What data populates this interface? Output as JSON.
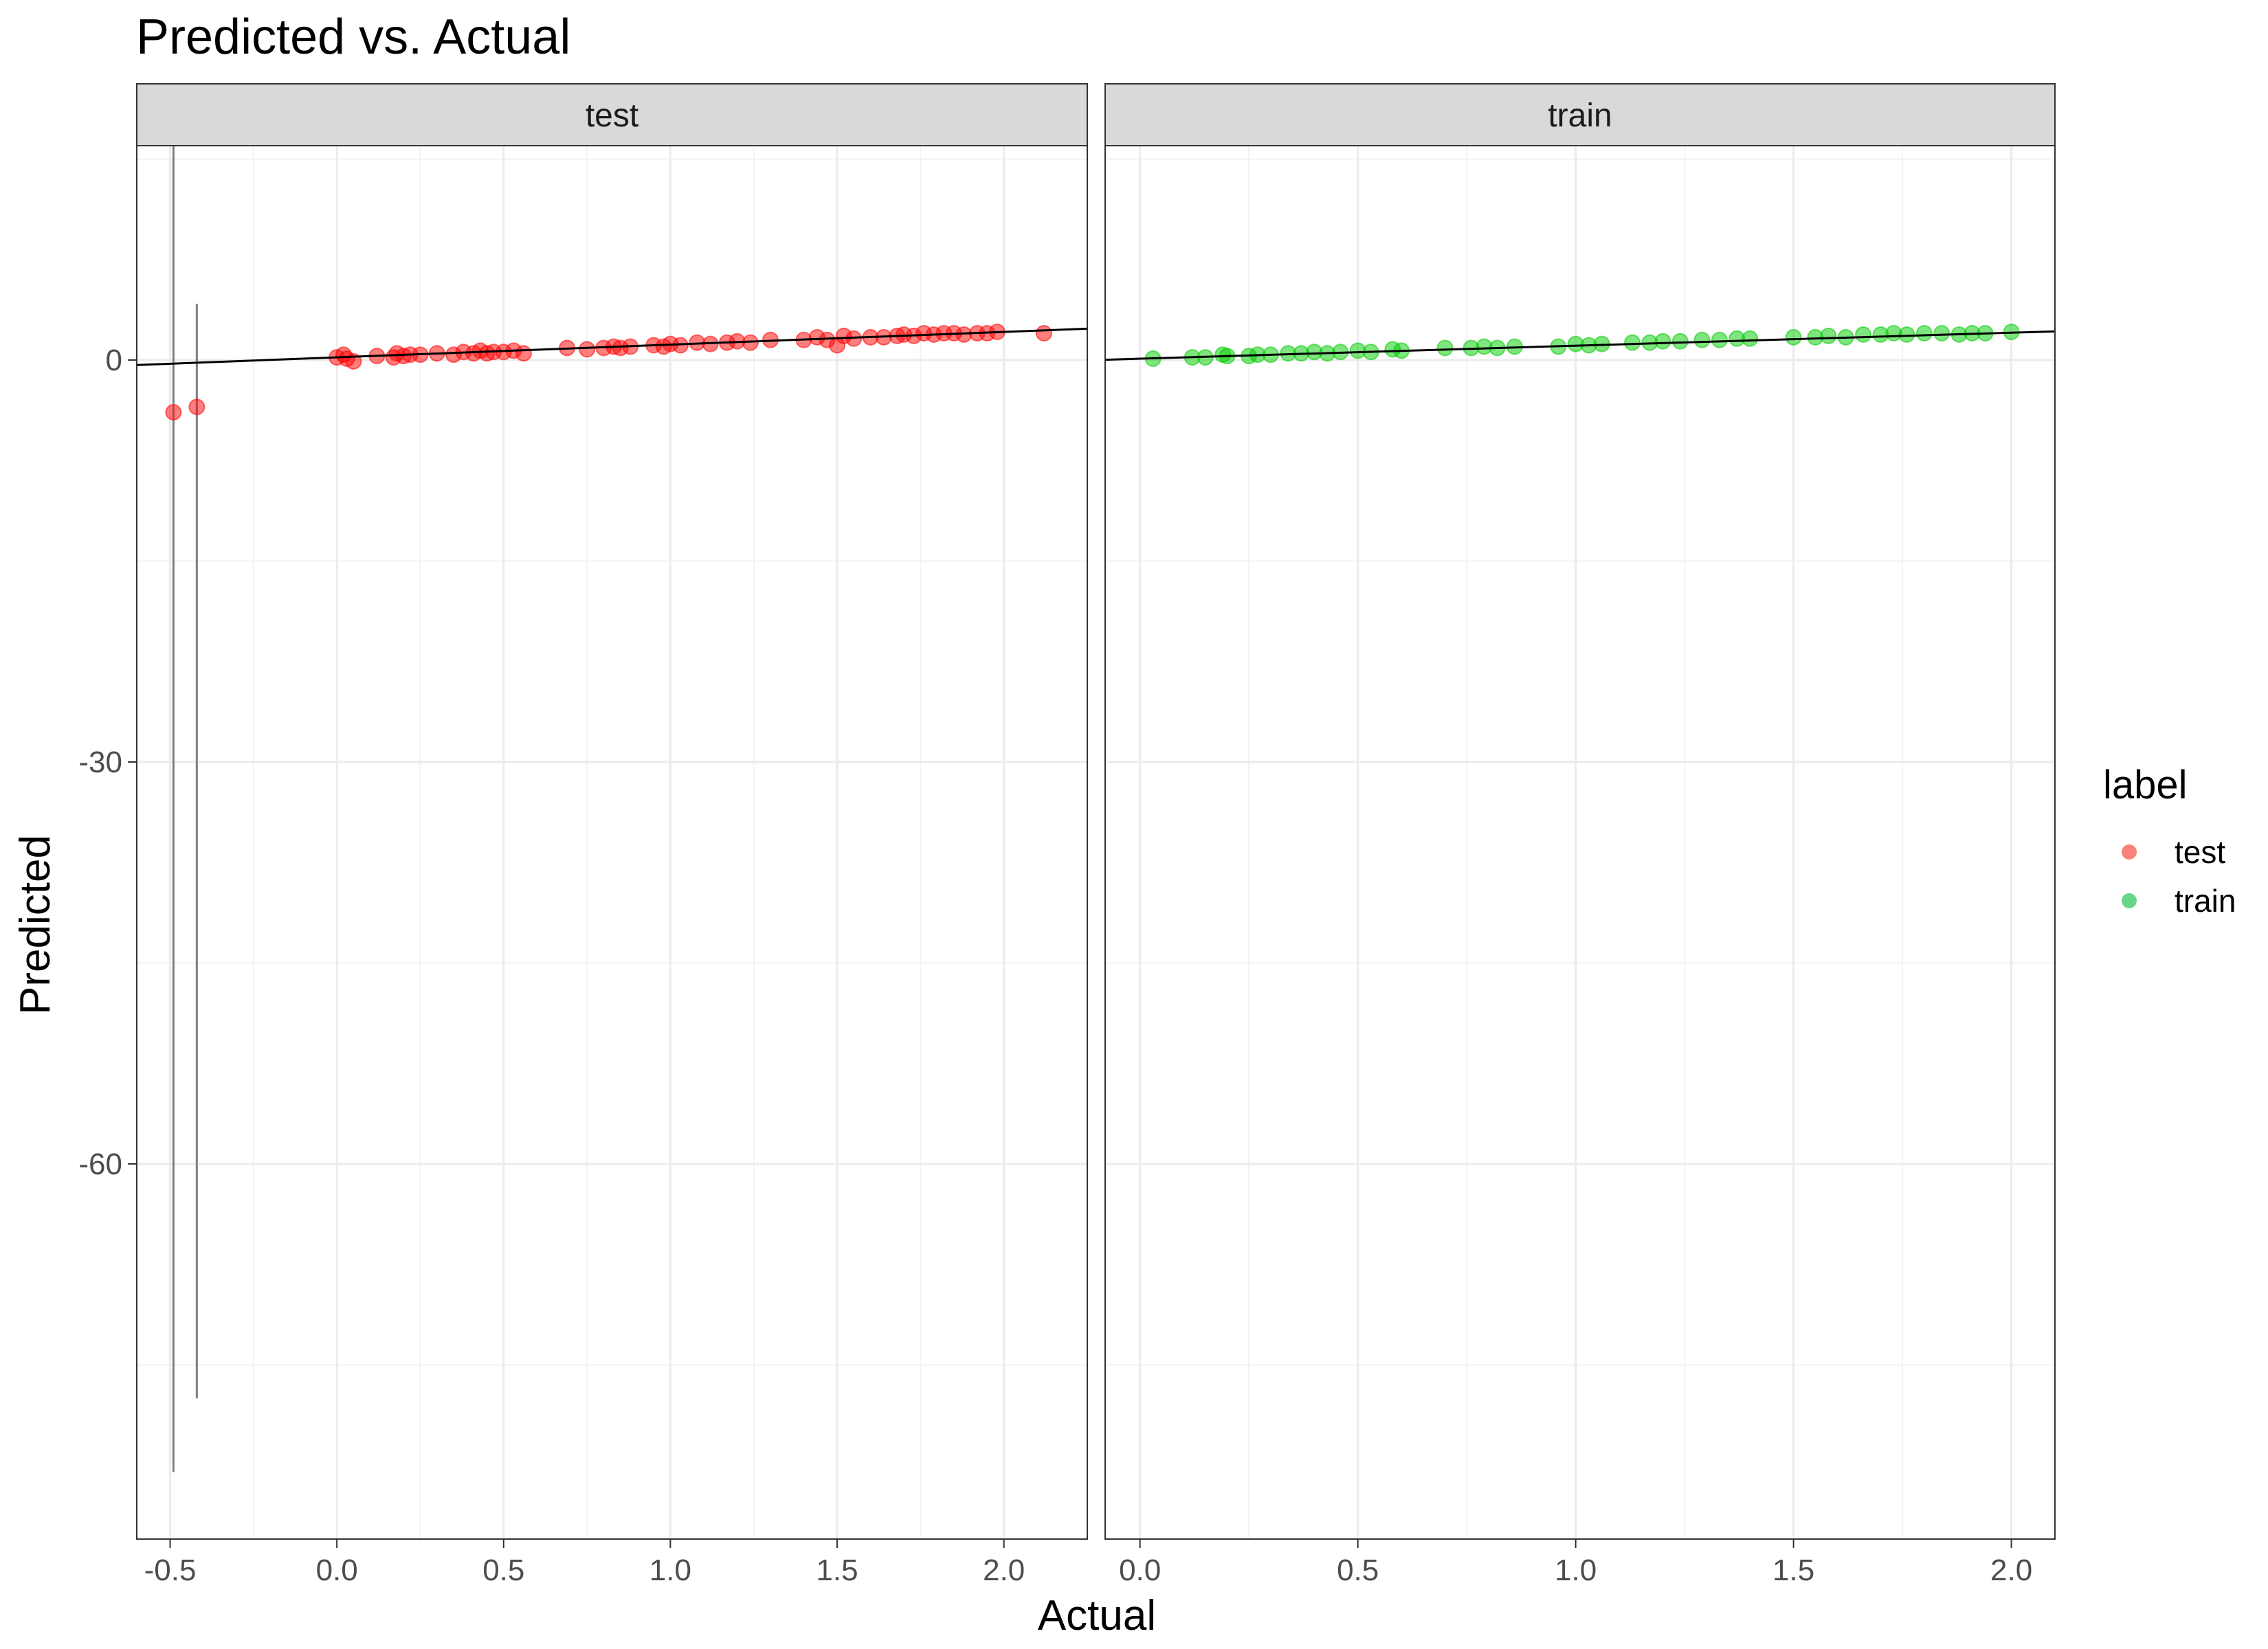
{
  "chart_data": {
    "type": "scatter",
    "title": "Predicted vs. Actual",
    "xlabel": "Actual",
    "ylabel": "Predicted",
    "xlim": [
      -0.6,
      2.25
    ],
    "xlim_train": [
      -0.08,
      2.1
    ],
    "ylim": [
      -88,
      16
    ],
    "y_ticks": [
      -60,
      -30,
      0
    ],
    "y_tick_labels": [
      "-60",
      "-30",
      "0"
    ],
    "x_ticks_test": [
      -0.5,
      0.0,
      0.5,
      1.0,
      1.5,
      2.0
    ],
    "x_tick_labels_test": [
      "-0.5",
      "0.0",
      "0.5",
      "1.0",
      "1.5",
      "2.0"
    ],
    "x_ticks_train": [
      0.0,
      0.5,
      1.0,
      1.5,
      2.0
    ],
    "x_tick_labels_train": [
      "0.0",
      "0.5",
      "1.0",
      "1.5",
      "2.0"
    ],
    "grid": true,
    "legend": {
      "title": "label",
      "position": "right",
      "entries": [
        {
          "name": "test",
          "color": "#f8766d"
        },
        {
          "name": "train",
          "color": "#00ba38"
        }
      ]
    },
    "colors": {
      "test": "#ff0000",
      "train": "#00cc00",
      "strip_bg": "#d9d9d9",
      "error_bar": "#7f7f7f",
      "fit_line": "#000000"
    },
    "facets": [
      {
        "name": "test",
        "fit_line": {
          "intercept": 0.2,
          "slope": 0.95
        },
        "error_bars": [
          {
            "x": -0.49,
            "ymin": -83,
            "ymax": 19.5
          },
          {
            "x": -0.42,
            "ymin": -77.5,
            "ymax": 4.2
          }
        ],
        "points": [
          [
            -0.49,
            -3.9
          ],
          [
            -0.42,
            -3.5
          ],
          [
            0.0,
            0.2
          ],
          [
            0.02,
            0.4
          ],
          [
            0.03,
            0.1
          ],
          [
            0.05,
            -0.1
          ],
          [
            0.12,
            0.3
          ],
          [
            0.17,
            0.2
          ],
          [
            0.18,
            0.5
          ],
          [
            0.2,
            0.3
          ],
          [
            0.22,
            0.4
          ],
          [
            0.25,
            0.4
          ],
          [
            0.3,
            0.5
          ],
          [
            0.35,
            0.4
          ],
          [
            0.38,
            0.6
          ],
          [
            0.41,
            0.5
          ],
          [
            0.43,
            0.7
          ],
          [
            0.45,
            0.5
          ],
          [
            0.47,
            0.6
          ],
          [
            0.5,
            0.6
          ],
          [
            0.53,
            0.7
          ],
          [
            0.56,
            0.5
          ],
          [
            0.69,
            0.9
          ],
          [
            0.75,
            0.8
          ],
          [
            0.8,
            0.9
          ],
          [
            0.83,
            1.0
          ],
          [
            0.85,
            0.9
          ],
          [
            0.88,
            1.0
          ],
          [
            0.95,
            1.1
          ],
          [
            0.98,
            1.0
          ],
          [
            1.0,
            1.2
          ],
          [
            1.03,
            1.1
          ],
          [
            1.08,
            1.3
          ],
          [
            1.12,
            1.2
          ],
          [
            1.17,
            1.3
          ],
          [
            1.2,
            1.4
          ],
          [
            1.24,
            1.3
          ],
          [
            1.3,
            1.5
          ],
          [
            1.4,
            1.5
          ],
          [
            1.44,
            1.7
          ],
          [
            1.47,
            1.5
          ],
          [
            1.5,
            1.1
          ],
          [
            1.52,
            1.8
          ],
          [
            1.55,
            1.6
          ],
          [
            1.6,
            1.7
          ],
          [
            1.64,
            1.7
          ],
          [
            1.68,
            1.8
          ],
          [
            1.7,
            1.9
          ],
          [
            1.73,
            1.8
          ],
          [
            1.76,
            2.0
          ],
          [
            1.79,
            1.9
          ],
          [
            1.82,
            2.0
          ],
          [
            1.85,
            2.0
          ],
          [
            1.88,
            1.9
          ],
          [
            1.92,
            2.0
          ],
          [
            1.95,
            2.0
          ],
          [
            1.98,
            2.1
          ],
          [
            2.12,
            2.0
          ]
        ]
      },
      {
        "name": "train",
        "fit_line": {
          "intercept": 0.1,
          "slope": 0.97
        },
        "points": [
          [
            0.03,
            0.1
          ],
          [
            0.12,
            0.2
          ],
          [
            0.15,
            0.2
          ],
          [
            0.19,
            0.4
          ],
          [
            0.2,
            0.3
          ],
          [
            0.25,
            0.3
          ],
          [
            0.27,
            0.4
          ],
          [
            0.3,
            0.4
          ],
          [
            0.34,
            0.5
          ],
          [
            0.37,
            0.5
          ],
          [
            0.4,
            0.6
          ],
          [
            0.43,
            0.5
          ],
          [
            0.46,
            0.6
          ],
          [
            0.5,
            0.7
          ],
          [
            0.53,
            0.6
          ],
          [
            0.58,
            0.8
          ],
          [
            0.6,
            0.7
          ],
          [
            0.7,
            0.9
          ],
          [
            0.76,
            0.9
          ],
          [
            0.79,
            1.0
          ],
          [
            0.82,
            0.9
          ],
          [
            0.86,
            1.0
          ],
          [
            0.96,
            1.0
          ],
          [
            1.0,
            1.2
          ],
          [
            1.03,
            1.1
          ],
          [
            1.06,
            1.2
          ],
          [
            1.13,
            1.3
          ],
          [
            1.17,
            1.3
          ],
          [
            1.2,
            1.4
          ],
          [
            1.24,
            1.4
          ],
          [
            1.29,
            1.5
          ],
          [
            1.33,
            1.5
          ],
          [
            1.37,
            1.6
          ],
          [
            1.4,
            1.6
          ],
          [
            1.5,
            1.7
          ],
          [
            1.55,
            1.7
          ],
          [
            1.58,
            1.8
          ],
          [
            1.62,
            1.7
          ],
          [
            1.66,
            1.9
          ],
          [
            1.7,
            1.9
          ],
          [
            1.73,
            2.0
          ],
          [
            1.76,
            1.9
          ],
          [
            1.8,
            2.0
          ],
          [
            1.84,
            2.0
          ],
          [
            1.88,
            1.9
          ],
          [
            1.91,
            2.0
          ],
          [
            1.94,
            2.0
          ],
          [
            2.0,
            2.1
          ]
        ]
      }
    ]
  }
}
